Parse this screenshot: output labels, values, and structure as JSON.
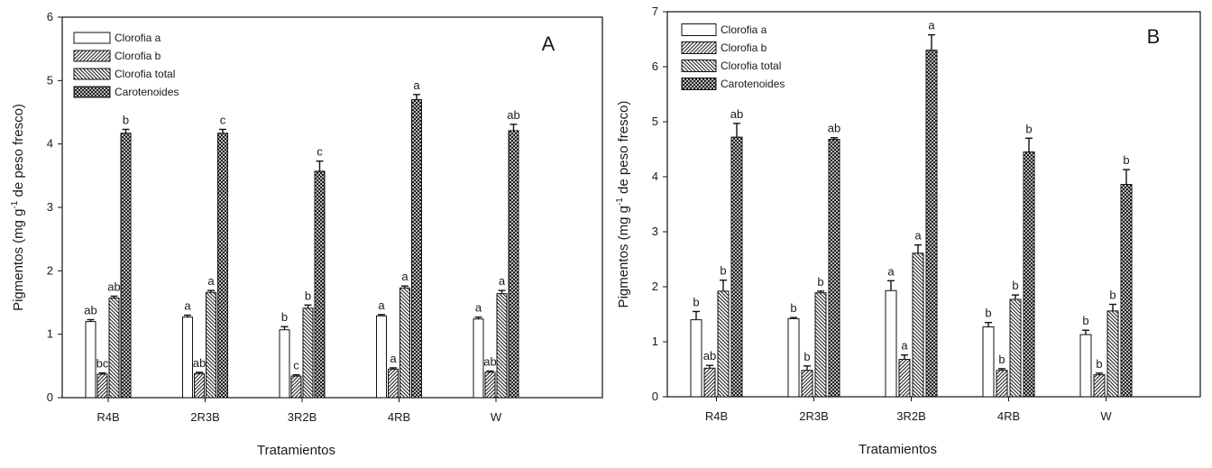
{
  "chart_data": [
    {
      "type": "bar",
      "panel_label": "A",
      "xlabel": "Tratamientos",
      "ylabel_pre": "Pigmentos (mg g",
      "ylabel_sup": "-1",
      "ylabel_post": " de peso fresco)",
      "ylim": [
        0,
        6
      ],
      "yticks": [
        "0",
        "1",
        "2",
        "3",
        "4",
        "5",
        "6"
      ],
      "categories": [
        "R4B",
        "2R3B",
        "3R2B",
        "4RB",
        "W"
      ],
      "legend_position": "top-left",
      "series": [
        {
          "name": "Clorofia a",
          "values": [
            1.2,
            1.27,
            1.07,
            1.29,
            1.24
          ],
          "errors": [
            0.03,
            0.03,
            0.05,
            0.02,
            0.03
          ],
          "letters": [
            "ab",
            "a",
            "b",
            "a",
            "a"
          ]
        },
        {
          "name": "Clorofia b",
          "values": [
            0.37,
            0.38,
            0.34,
            0.45,
            0.4
          ],
          "errors": [
            0.02,
            0.02,
            0.02,
            0.02,
            0.02
          ],
          "letters": [
            "bc",
            "ab",
            "c",
            "a",
            "ab"
          ]
        },
        {
          "name": "Clorofia total",
          "values": [
            1.57,
            1.66,
            1.41,
            1.73,
            1.64
          ],
          "errors": [
            0.03,
            0.03,
            0.05,
            0.03,
            0.05
          ],
          "letters": [
            "ab",
            "a",
            "b",
            "a",
            "a"
          ]
        },
        {
          "name": "Carotenoides",
          "values": [
            4.17,
            4.17,
            3.57,
            4.7,
            4.21
          ],
          "errors": [
            0.06,
            0.06,
            0.16,
            0.08,
            0.1
          ],
          "letters": [
            "b",
            "c",
            "c",
            "a",
            "ab"
          ]
        }
      ]
    },
    {
      "type": "bar",
      "panel_label": "B",
      "xlabel": "Tratamientos",
      "ylabel_pre": "Pigmentos (mg g",
      "ylabel_sup": "-1",
      "ylabel_post": " de peso fresco)",
      "ylim": [
        0,
        7
      ],
      "yticks": [
        "0",
        "1",
        "2",
        "3",
        "4",
        "5",
        "6",
        "7"
      ],
      "categories": [
        "R4B",
        "2R3B",
        "3R2B",
        "4RB",
        "W"
      ],
      "legend_position": "top-left",
      "series": [
        {
          "name": "Clorofia a",
          "values": [
            1.4,
            1.42,
            1.93,
            1.27,
            1.13
          ],
          "errors": [
            0.15,
            0.02,
            0.18,
            0.08,
            0.08
          ],
          "letters": [
            "b",
            "b",
            "a",
            "b",
            "b"
          ]
        },
        {
          "name": "Clorofia b",
          "values": [
            0.52,
            0.48,
            0.68,
            0.48,
            0.4
          ],
          "errors": [
            0.05,
            0.08,
            0.08,
            0.03,
            0.03
          ],
          "letters": [
            "ab",
            "b",
            "a",
            "b",
            "b"
          ]
        },
        {
          "name": "Clorofia total",
          "values": [
            1.92,
            1.89,
            2.61,
            1.77,
            1.56
          ],
          "errors": [
            0.2,
            0.03,
            0.15,
            0.08,
            0.12
          ],
          "letters": [
            "b",
            "b",
            "a",
            "b",
            "b"
          ]
        },
        {
          "name": "Carotenoides",
          "values": [
            4.72,
            4.68,
            6.3,
            4.45,
            3.86
          ],
          "errors": [
            0.25,
            0.03,
            0.28,
            0.25,
            0.27
          ],
          "letters": [
            "ab",
            "ab",
            "a",
            "b",
            "b"
          ]
        }
      ]
    }
  ]
}
